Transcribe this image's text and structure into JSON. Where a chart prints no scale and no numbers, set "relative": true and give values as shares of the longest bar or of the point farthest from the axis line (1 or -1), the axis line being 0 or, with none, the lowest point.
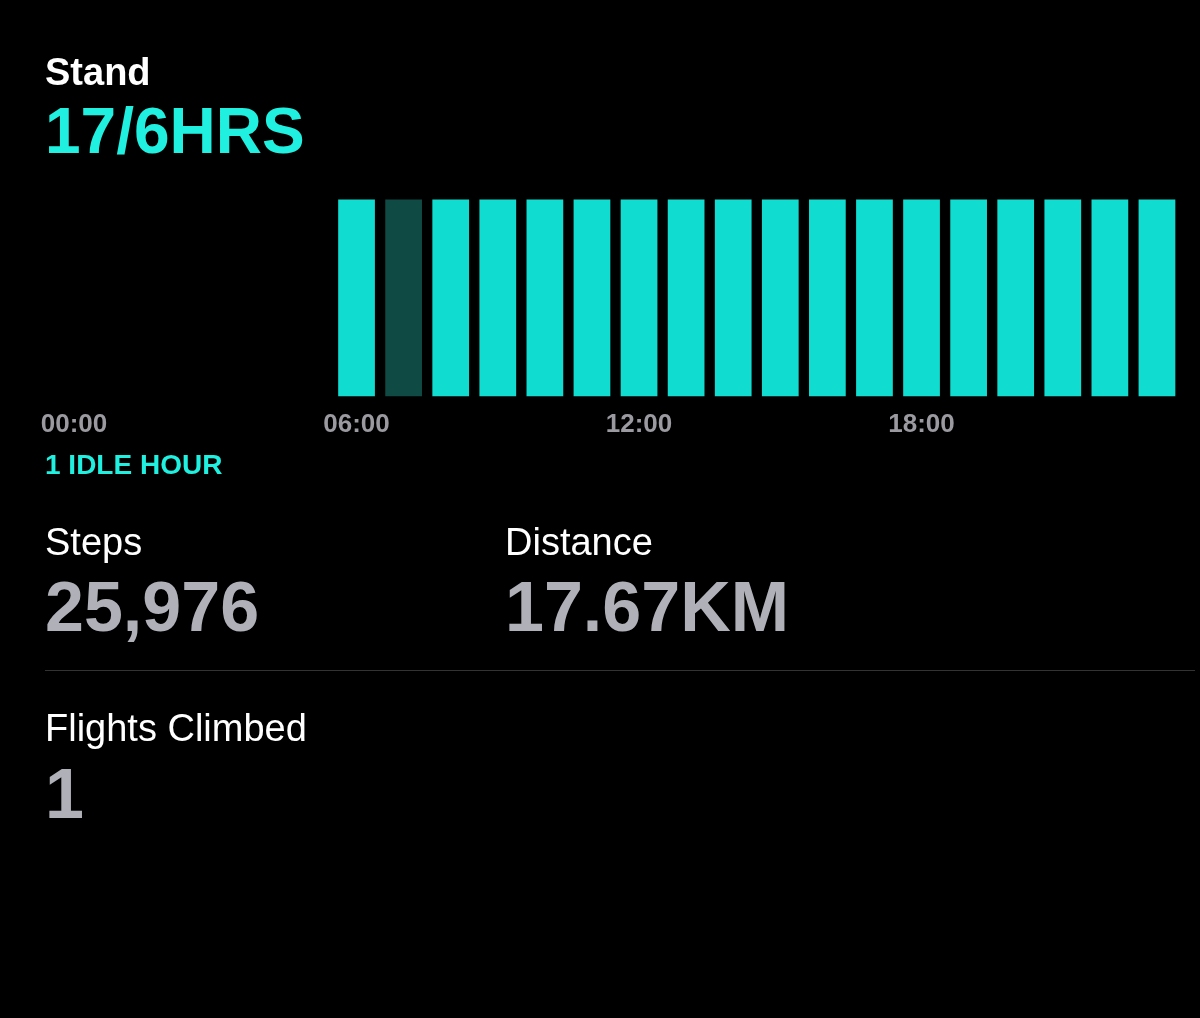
{
  "chart_data": [
    {
      "type": "bar",
      "title": "Stand",
      "subtitle": "17/6HRS",
      "relative": true,
      "categories": [
        "00:00",
        null,
        null,
        null,
        null,
        null,
        "06:00",
        null,
        null,
        null,
        null,
        null,
        "12:00",
        null,
        null,
        null,
        null,
        null,
        "18:00",
        null,
        null,
        null,
        null,
        null
      ],
      "values": [
        null,
        null,
        null,
        null,
        null,
        null,
        1,
        1,
        1,
        1,
        1,
        1,
        1,
        1,
        1,
        1,
        1,
        1,
        1,
        1,
        1,
        1,
        1,
        1
      ],
      "colors": [
        "#10dccf",
        "#10dccf",
        "#10dccf",
        "#10dccf",
        "#10dccf",
        "#10dccf",
        "#10dccf",
        "#0f4a44",
        "#10dccf",
        "#10dccf",
        "#10dccf",
        "#10dccf",
        "#10dccf",
        "#10dccf",
        "#10dccf",
        "#10dccf",
        "#10dccf",
        "#10dccf",
        "#10dccf",
        "#10dccf",
        "#10dccf",
        "#10dccf",
        "#10dccf",
        "#10dccf"
      ],
      "annotations": [
        "1 IDLE HOUR"
      ]
    },
    {
      "type": "other",
      "annotations": [
        "Steps",
        "25,976",
        "Distance",
        "17.67KM",
        "Flights Climbed",
        "1"
      ]
    }
  ]
}
